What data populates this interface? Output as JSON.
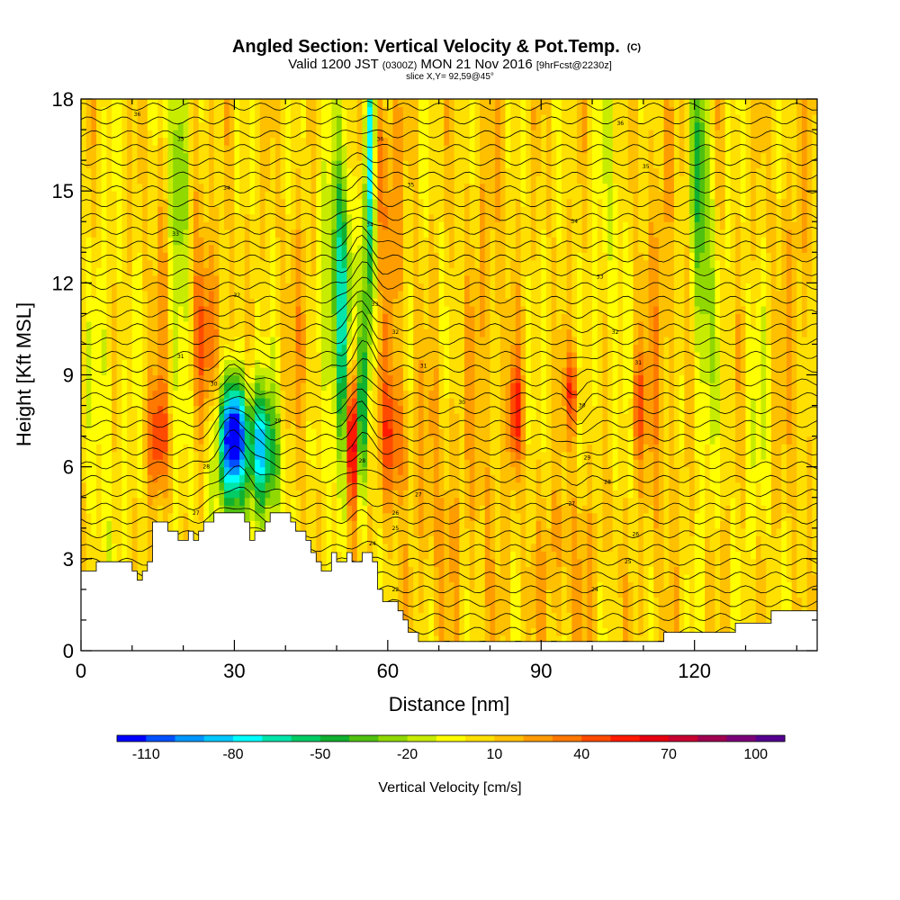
{
  "chart_data": {
    "type": "heatmap",
    "title": "Angled Section: Vertical Velocity & Pot.Temp.",
    "title_suffix": "(C)",
    "subtitle_parts": [
      "Valid 1200 JST ",
      "(0300Z)",
      " MON 21 Nov 2016 ",
      "[9hrFcst@2230z]"
    ],
    "subtitle2": "slice X,Y= 92,59@45°",
    "xlabel": "Distance [nm]",
    "ylabel": "Height [Kft MSL]",
    "xlim": [
      0,
      144
    ],
    "ylim": [
      0,
      18
    ],
    "x_ticks": [
      0,
      30,
      60,
      90,
      120
    ],
    "x_tick_labels": [
      "0",
      "30",
      "60",
      "90",
      "120"
    ],
    "y_ticks": [
      0,
      3,
      6,
      9,
      12,
      15,
      18
    ],
    "y_tick_labels": [
      "0",
      "3",
      "6",
      "9",
      "12",
      "15",
      "18"
    ],
    "grid": false,
    "colorbar": {
      "label": "Vertical Velocity [cm/s]",
      "tick_labels": [
        "-110",
        "-80",
        "-50",
        "-20",
        "10",
        "40",
        "70",
        "100"
      ],
      "bins": [
        -120,
        -110,
        -100,
        -90,
        -80,
        -70,
        -60,
        -50,
        -40,
        -30,
        -20,
        -10,
        0,
        10,
        20,
        30,
        40,
        50,
        60,
        70,
        80,
        90,
        100,
        110
      ],
      "colors": [
        "#0000ff",
        "#0050ff",
        "#0096ff",
        "#00c8ff",
        "#00ffff",
        "#00e6aa",
        "#00cc66",
        "#10b030",
        "#50c010",
        "#90d800",
        "#c8ec00",
        "#ffff00",
        "#ffe000",
        "#ffc000",
        "#ff9c00",
        "#ff7800",
        "#ff4a00",
        "#ff1a00",
        "#e60010",
        "#c80030",
        "#a00050",
        "#7a0078",
        "#540090"
      ]
    },
    "terrain_kft": [
      [
        0,
        2.6
      ],
      [
        3,
        2.6
      ],
      [
        3,
        2.9
      ],
      [
        10,
        2.9
      ],
      [
        10,
        2.6
      ],
      [
        11,
        2.6
      ],
      [
        11,
        2.3
      ],
      [
        12,
        2.3
      ],
      [
        12,
        2.6
      ],
      [
        13,
        2.6
      ],
      [
        13,
        2.9
      ],
      [
        14,
        2.9
      ],
      [
        14,
        4.2
      ],
      [
        17,
        4.2
      ],
      [
        17,
        3.9
      ],
      [
        19,
        3.9
      ],
      [
        19,
        3.6
      ],
      [
        21,
        3.6
      ],
      [
        21,
        3.9
      ],
      [
        22,
        3.9
      ],
      [
        22,
        3.6
      ],
      [
        23,
        3.6
      ],
      [
        23,
        3.9
      ],
      [
        24,
        3.9
      ],
      [
        24,
        4.2
      ],
      [
        26,
        4.2
      ],
      [
        26,
        4.5
      ],
      [
        32,
        4.5
      ],
      [
        32,
        4.2
      ],
      [
        33,
        4.2
      ],
      [
        33,
        3.6
      ],
      [
        34,
        3.6
      ],
      [
        34,
        3.9
      ],
      [
        36,
        3.9
      ],
      [
        36,
        4.2
      ],
      [
        37,
        4.2
      ],
      [
        37,
        4.5
      ],
      [
        41,
        4.5
      ],
      [
        41,
        4.2
      ],
      [
        42,
        4.2
      ],
      [
        42,
        3.9
      ],
      [
        44,
        3.9
      ],
      [
        44,
        3.6
      ],
      [
        45,
        3.6
      ],
      [
        45,
        3.2
      ],
      [
        46,
        3.2
      ],
      [
        46,
        2.9
      ],
      [
        47,
        2.9
      ],
      [
        47,
        2.6
      ],
      [
        49,
        2.6
      ],
      [
        49,
        3.2
      ],
      [
        50,
        3.2
      ],
      [
        50,
        2.9
      ],
      [
        52,
        2.9
      ],
      [
        52,
        3.2
      ],
      [
        53,
        3.2
      ],
      [
        53,
        2.9
      ],
      [
        55,
        2.9
      ],
      [
        55,
        3.2
      ],
      [
        57,
        3.2
      ],
      [
        57,
        2.9
      ],
      [
        58,
        2.9
      ],
      [
        58,
        2.0
      ],
      [
        59,
        2.0
      ],
      [
        59,
        1.6
      ],
      [
        62,
        1.6
      ],
      [
        62,
        1.3
      ],
      [
        63,
        1.3
      ],
      [
        63,
        1.0
      ],
      [
        64,
        1.0
      ],
      [
        64,
        0.6
      ],
      [
        66,
        0.6
      ],
      [
        66,
        0.3
      ],
      [
        91,
        0.3
      ],
      [
        91,
        0.3
      ],
      [
        114,
        0.3
      ],
      [
        114,
        0.6
      ],
      [
        128,
        0.6
      ],
      [
        128,
        0.9
      ],
      [
        135,
        0.9
      ],
      [
        135,
        1.3
      ],
      [
        140,
        1.3
      ],
      [
        140,
        1.3
      ],
      [
        144,
        1.3
      ]
    ],
    "w_features": [
      {
        "x": 30,
        "z": 7.0,
        "sx": 1.6,
        "sz": 1.1,
        "w": -105
      },
      {
        "x": 30,
        "z": 6.4,
        "sx": 3.2,
        "sz": 2.2,
        "w": -45
      },
      {
        "x": 35,
        "z": 6.8,
        "sx": 1.2,
        "sz": 1.2,
        "w": -60
      },
      {
        "x": 37,
        "z": 6.2,
        "sx": 2.0,
        "sz": 1.6,
        "w": -35
      },
      {
        "x": 15,
        "z": 6.9,
        "sx": 1.5,
        "sz": 1.3,
        "w": 40
      },
      {
        "x": 26,
        "z": 10.0,
        "sx": 2.8,
        "sz": 1.6,
        "w": 25
      },
      {
        "x": 19,
        "z": 16.0,
        "sx": 1.3,
        "sz": 2.4,
        "w": -40
      },
      {
        "x": 20,
        "z": 12.5,
        "sx": 1.8,
        "sz": 4.0,
        "w": -15
      },
      {
        "x": 23,
        "z": 13.0,
        "sx": 1.6,
        "sz": 4.0,
        "w": 18
      },
      {
        "x": 16,
        "z": 13.5,
        "sx": 1.4,
        "sz": 3.0,
        "w": 15
      },
      {
        "x": 51,
        "z": 12.0,
        "sx": 1.3,
        "sz": 2.5,
        "w": -60
      },
      {
        "x": 51,
        "z": 8.0,
        "sx": 1.2,
        "sz": 2.5,
        "w": -40
      },
      {
        "x": 53,
        "z": 7.0,
        "sx": 0.8,
        "sz": 1.8,
        "w": 80
      },
      {
        "x": 55,
        "z": 7.5,
        "sx": 0.7,
        "sz": 1.8,
        "w": -50
      },
      {
        "x": 56.5,
        "z": 16.5,
        "sx": 0.7,
        "sz": 2.5,
        "w": -90
      },
      {
        "x": 56,
        "z": 12.0,
        "sx": 1.0,
        "sz": 3.0,
        "w": -35
      },
      {
        "x": 58,
        "z": 16.0,
        "sx": 1.6,
        "sz": 2.0,
        "w": 30
      },
      {
        "x": 61,
        "z": 7.0,
        "sx": 1.8,
        "sz": 1.5,
        "w": 40
      },
      {
        "x": 61,
        "z": 13.0,
        "sx": 1.5,
        "sz": 3.0,
        "w": 20
      },
      {
        "x": 48,
        "z": 13.0,
        "sx": 2.0,
        "sz": 4.0,
        "w": -20
      },
      {
        "x": 44,
        "z": 11.0,
        "sx": 2.5,
        "sz": 3.0,
        "w": 15
      },
      {
        "x": 85,
        "z": 7.8,
        "sx": 0.8,
        "sz": 1.2,
        "w": 45
      },
      {
        "x": 96,
        "z": 8.5,
        "sx": 1.0,
        "sz": 1.0,
        "w": 40
      },
      {
        "x": 109,
        "z": 8.0,
        "sx": 0.9,
        "sz": 1.3,
        "w": 35
      },
      {
        "x": 121,
        "z": 16.0,
        "sx": 1.2,
        "sz": 3.0,
        "w": -40
      },
      {
        "x": 122,
        "z": 11.0,
        "sx": 1.5,
        "sz": 3.5,
        "w": -25
      },
      {
        "x": 132,
        "z": 7.5,
        "sx": 1.5,
        "sz": 2.5,
        "w": -15
      },
      {
        "x": 103,
        "z": 14.0,
        "sx": 2.0,
        "sz": 4.0,
        "w": -12
      },
      {
        "x": 80,
        "z": 10.0,
        "sx": 3.0,
        "sz": 6.0,
        "w": 12
      },
      {
        "x": 113,
        "z": 10.0,
        "sx": 2.5,
        "sz": 6.0,
        "w": 15
      },
      {
        "x": 140,
        "z": 12.0,
        "sx": 3.0,
        "sz": 5.0,
        "w": 10
      },
      {
        "x": 5,
        "z": 8.0,
        "sx": 2.0,
        "sz": 5.0,
        "w": -12
      },
      {
        "x": 70,
        "z": 5.0,
        "sx": 4.0,
        "sz": 3.0,
        "w": 14
      },
      {
        "x": 95,
        "z": 3.0,
        "sx": 5.0,
        "sz": 2.0,
        "w": 15
      }
    ],
    "contour_labels": [
      {
        "x": 11,
        "z": 17.5,
        "t": "36"
      },
      {
        "x": 19.5,
        "z": 16.7,
        "t": "35"
      },
      {
        "x": 28.5,
        "z": 15.1,
        "t": "34"
      },
      {
        "x": 18.5,
        "z": 13.6,
        "t": "33"
      },
      {
        "x": 30.5,
        "z": 11.6,
        "t": "32"
      },
      {
        "x": 19.5,
        "z": 9.6,
        "t": "31"
      },
      {
        "x": 26,
        "z": 8.7,
        "t": "30"
      },
      {
        "x": 38.5,
        "z": 7.5,
        "t": "29"
      },
      {
        "x": 24.5,
        "z": 6.0,
        "t": "28"
      },
      {
        "x": 22.5,
        "z": 4.5,
        "t": "27"
      },
      {
        "x": 58.5,
        "z": 16.7,
        "t": "36"
      },
      {
        "x": 64.5,
        "z": 15.2,
        "t": "35"
      },
      {
        "x": 56.5,
        "z": 13.9,
        "t": "34"
      },
      {
        "x": 57.5,
        "z": 11.3,
        "t": "33"
      },
      {
        "x": 61.5,
        "z": 10.4,
        "t": "32"
      },
      {
        "x": 67,
        "z": 9.3,
        "t": "31"
      },
      {
        "x": 74.5,
        "z": 8.1,
        "t": "30"
      },
      {
        "x": 55,
        "z": 6.2,
        "t": "28"
      },
      {
        "x": 66,
        "z": 5.1,
        "t": "27"
      },
      {
        "x": 61.5,
        "z": 4.5,
        "t": "26"
      },
      {
        "x": 61.5,
        "z": 4.0,
        "t": "25"
      },
      {
        "x": 57,
        "z": 3.5,
        "t": "24"
      },
      {
        "x": 61.5,
        "z": 2.0,
        "t": "22"
      },
      {
        "x": 105.5,
        "z": 17.2,
        "t": "36"
      },
      {
        "x": 110.5,
        "z": 15.8,
        "t": "35"
      },
      {
        "x": 96.5,
        "z": 14.0,
        "t": "34"
      },
      {
        "x": 101.5,
        "z": 12.2,
        "t": "33"
      },
      {
        "x": 104.5,
        "z": 10.4,
        "t": "32"
      },
      {
        "x": 109,
        "z": 9.4,
        "t": "31"
      },
      {
        "x": 98,
        "z": 8.0,
        "t": "30"
      },
      {
        "x": 99,
        "z": 6.3,
        "t": "29"
      },
      {
        "x": 103,
        "z": 5.5,
        "t": "28"
      },
      {
        "x": 96,
        "z": 4.8,
        "t": "27"
      },
      {
        "x": 108.5,
        "z": 3.8,
        "t": "26"
      },
      {
        "x": 107,
        "z": 2.9,
        "t": "25"
      },
      {
        "x": 100.5,
        "z": 2.0,
        "t": "24"
      }
    ]
  }
}
